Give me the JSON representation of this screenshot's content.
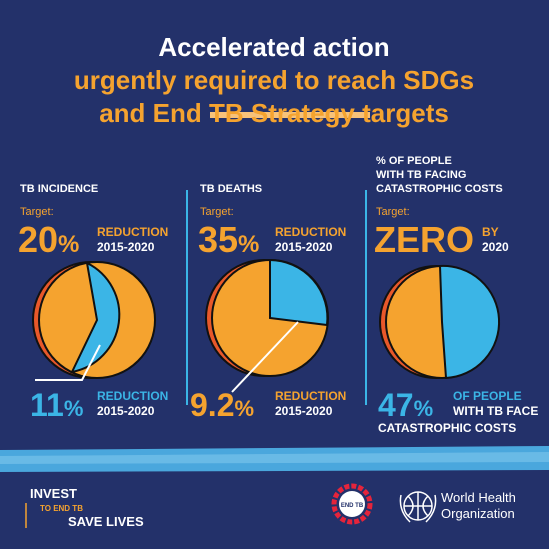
{
  "title": {
    "line1": "Accelerated action",
    "line2": "urgently required to reach SDGs",
    "line3a": "and ",
    "line3b": "End TB Strategy",
    "line3c": " targets"
  },
  "panels": [
    {
      "heading": [
        "TB INCIDENCE"
      ],
      "target_label": "Target:",
      "target_value": "20",
      "target_unit": "%",
      "target_text": "REDUCTION",
      "target_period": "2015-2020",
      "result_value": "11",
      "result_unit": "%",
      "result_text": "REDUCTION",
      "result_period": "2015-2020"
    },
    {
      "heading": [
        "TB DEATHS"
      ],
      "target_label": "Target:",
      "target_value": "35",
      "target_unit": "%",
      "target_text": "REDUCTION",
      "target_period": "2015-2020",
      "result_value": "9.2",
      "result_unit": "%",
      "result_text": "REDUCTION",
      "result_period": "2015-2020"
    },
    {
      "heading": [
        "% OF PEOPLE",
        "WITH TB FACING",
        "CATASTROPHIC COSTS"
      ],
      "target_label": "Target:",
      "target_value": "ZERO",
      "target_text": "BY",
      "target_period": "2020",
      "result_value": "47",
      "result_unit": "%",
      "result_text": "OF PEOPLE",
      "result_text2": "WITH TB FACE",
      "result_text3": "CATASTROPHIC COSTS"
    }
  ],
  "footer": {
    "invest": "INVEST",
    "to_end": "TO END TB",
    "save": "SAVE LIVES",
    "sdg_logo": "END TB",
    "who_line1": "World Health",
    "who_line2": "Organization"
  }
}
